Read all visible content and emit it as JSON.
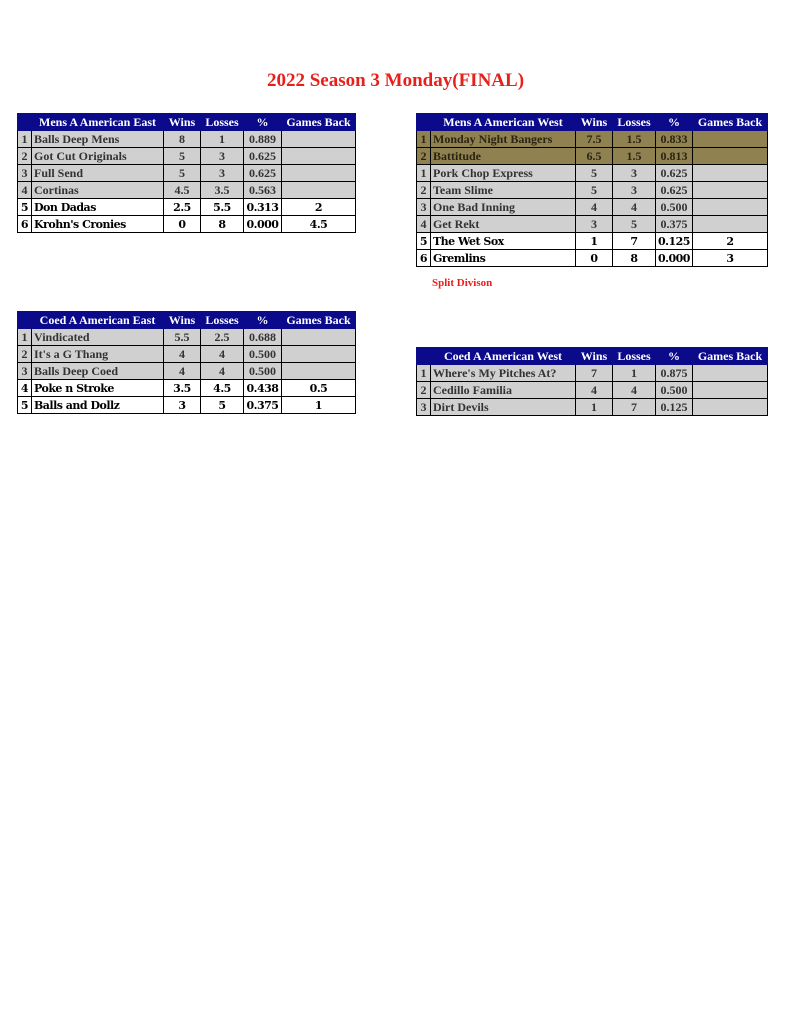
{
  "title": "2022 Season 3 Monday(FINAL)",
  "columns": [
    "Wins",
    "Losses",
    "%",
    "Games Back"
  ],
  "tables": [
    {
      "division": "Mens A American East",
      "rows": [
        [
          "1",
          "Balls Deep Mens",
          "8",
          "1",
          "0.889",
          "",
          "grey"
        ],
        [
          "2",
          "Got Cut Originals",
          "5",
          "3",
          "0.625",
          "",
          "grey"
        ],
        [
          "3",
          "Full Send",
          "5",
          "3",
          "0.625",
          "",
          "grey"
        ],
        [
          "4",
          "Cortinas",
          "4.5",
          "3.5",
          "0.563",
          "",
          "grey"
        ],
        [
          "5",
          "Don Dadas",
          "2.5",
          "5.5",
          "0.313",
          "2",
          "white"
        ],
        [
          "6",
          "Krohn's Cronies",
          "0",
          "8",
          "0.000",
          "4.5",
          "white"
        ]
      ]
    },
    {
      "division": "Mens A American West",
      "rows": [
        [
          "1",
          "Monday Night Bangers",
          "7.5",
          "1.5",
          "0.833",
          "",
          "gold"
        ],
        [
          "2",
          "Battitude",
          "6.5",
          "1.5",
          "0.813",
          "",
          "gold"
        ],
        [
          "1",
          "Pork Chop Express",
          "5",
          "3",
          "0.625",
          "",
          "grey"
        ],
        [
          "2",
          "Team Slime",
          "5",
          "3",
          "0.625",
          "",
          "grey"
        ],
        [
          "3",
          "One Bad Inning",
          "4",
          "4",
          "0.500",
          "",
          "grey"
        ],
        [
          "4",
          "Get Rekt",
          "3",
          "5",
          "0.375",
          "",
          "grey"
        ],
        [
          "5",
          "The Wet Sox",
          "1",
          "7",
          "0.125",
          "2",
          "white"
        ],
        [
          "6",
          "Gremlins",
          "0",
          "8",
          "0.000",
          "3",
          "white"
        ]
      ],
      "note": "Split Divison"
    },
    {
      "division": "Coed A American East",
      "rows": [
        [
          "1",
          "Vindicated",
          "5.5",
          "2.5",
          "0.688",
          "",
          "grey"
        ],
        [
          "2",
          "It's a G Thang",
          "4",
          "4",
          "0.500",
          "",
          "grey"
        ],
        [
          "3",
          "Balls Deep Coed",
          "4",
          "4",
          "0.500",
          "",
          "grey"
        ],
        [
          "4",
          "Poke n Stroke",
          "3.5",
          "4.5",
          "0.438",
          "0.5",
          "white"
        ],
        [
          "5",
          "Balls and Dollz",
          "3",
          "5",
          "0.375",
          "1",
          "white"
        ]
      ]
    },
    {
      "division": "Coed A American West",
      "rows": [
        [
          "1",
          "Where's My Pitches At?",
          "7",
          "1",
          "0.875",
          "",
          "grey"
        ],
        [
          "2",
          "Cedillo Familia",
          "4",
          "4",
          "0.500",
          "",
          "grey"
        ],
        [
          "3",
          "Dirt Devils",
          "1",
          "7",
          "0.125",
          "",
          "grey"
        ]
      ]
    }
  ],
  "colors": {
    "header": "#0a0a8a",
    "title": "#e8201b",
    "gold": "#8f8150",
    "grey": "#d0d0d0"
  }
}
